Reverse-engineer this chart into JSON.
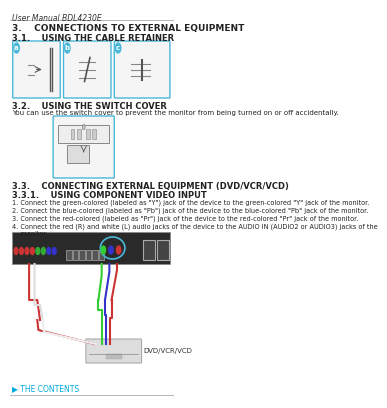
{
  "bg_color": "#ffffff",
  "header_text": "User Manual BDL4230E",
  "header_fontsize": 5.5,
  "header_color": "#333333",
  "title_line_color": "#999999",
  "section3_title": "3.    CONNECTIONS TO EXTERNAL EQUIPMENT",
  "section31_title": "3.1.    USING THE CABLE RETAINER",
  "section32_title": "3.2.    USING THE SWITCH COVER",
  "section32_body": "You can use the switch cover to prevent the monitor from being turned on or off accidentally.",
  "section33_title": "3.3.    CONNECTING EXTERNAL EQUIPMENT (DVD/VCR/VCD)",
  "section331_title": "3.3.1.    USING COMPONENT VIDEO INPUT",
  "section331_items": [
    "1. Connect the green-colored (labeled as \"Y\") jack of the device to the green-colored \"Y\" jack of the monitor.",
    "2. Connect the blue-colored (labeled as \"Pb\") jack of the device to the blue-colored \"Pb\" jack of the monitor.",
    "3. Connect the red-colored (labeled as \"Pr\") jack of the device to the red-colored \"Pr\" jack of the monitor.",
    "4. Connect the red (R) and white (L) audio jacks of the device to the AUDIO IN (AUDIO2 or AUDIO3) jacks of the\n    monitor."
  ],
  "return_text": "▶ THE CONTENTS",
  "return_color": "#00aadd",
  "box_border_color": "#4ab8d8",
  "body_fontsize": 5.0,
  "title_fontsize": 6.0,
  "section_fontsize": 6.5,
  "dvd_label": "DVD/VCR/VCD"
}
